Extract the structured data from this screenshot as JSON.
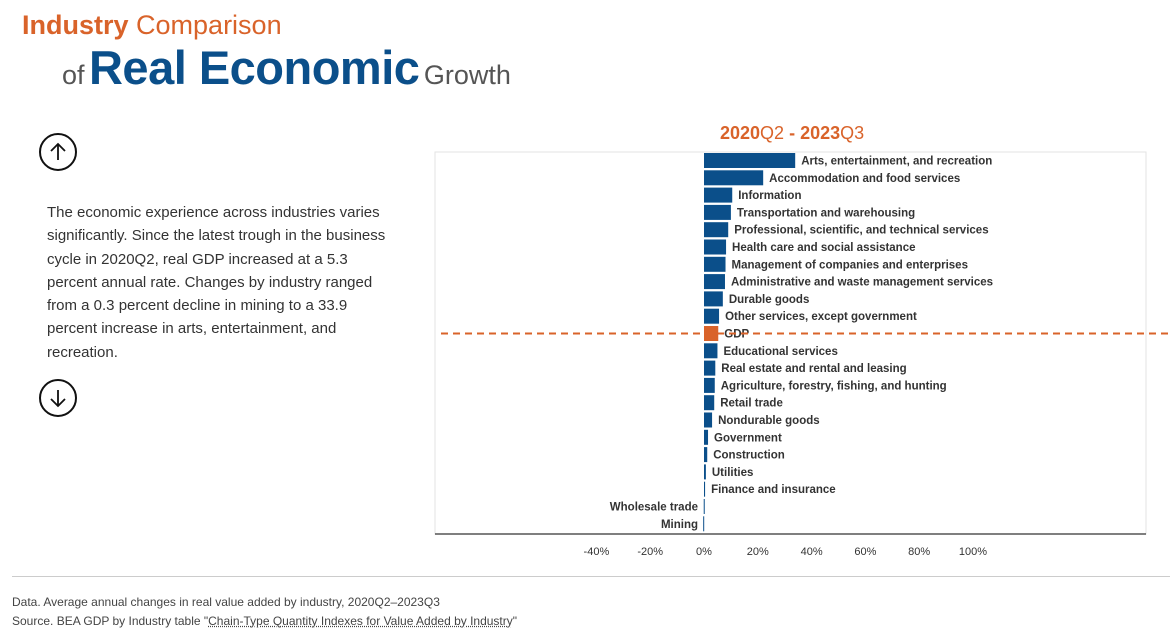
{
  "title": {
    "line1_bold": "Industry",
    "line1_light": "Comparison",
    "line2_of": "of",
    "line2_big": "Real Economic",
    "line2_growth": "Growth"
  },
  "narrative": "The economic experience across industries varies significantly. Since the latest trough in the business cycle in 2020Q2, real GDP increased at a 5.3 percent annual rate. Changes by industry ranged from a 0.3 percent decline in mining to a 33.9 percent increase in arts, entertainment, and recreation.",
  "nav": {
    "up_icon": "arrow-up-icon",
    "down_icon": "arrow-down-icon"
  },
  "period": {
    "start_year": "2020",
    "start_q": "Q2",
    "sep": " - ",
    "end_year": "2023",
    "end_q": "Q3"
  },
  "footnotes": {
    "data": "Data. Average annual changes in real value added by industry, 2020Q2–2023Q3",
    "source_prefix": "Source. BEA GDP by Industry table \"",
    "source_link": "Chain-Type Quantity Indexes for Value Added by Industry",
    "source_suffix": "\""
  },
  "colors": {
    "bar": "#0B4F8A",
    "gdp": "#D9632A",
    "reference_line": "#D9632A"
  },
  "chart_data": {
    "type": "bar",
    "orientation": "horizontal",
    "unit": "percent",
    "xlim": [
      -45,
      105
    ],
    "ticks": [
      -40,
      -20,
      0,
      20,
      40,
      60,
      80,
      100
    ],
    "tick_labels": [
      "-40%",
      "-20%",
      "0%",
      "20%",
      "40%",
      "60%",
      "80%",
      "100%"
    ],
    "reference_line": {
      "category": "GDP",
      "value": 5.3,
      "style": "dashed"
    },
    "categories": [
      "Arts, entertainment, and recreation",
      "Accommodation and food services",
      "Information",
      "Transportation and warehousing",
      "Professional, scientific, and technical services",
      "Health care and social assistance",
      "Management of companies and enterprises",
      "Administrative and waste management services",
      "Durable goods",
      "Other services, except government",
      "GDP",
      "Educational services",
      "Real estate and rental and leasing",
      "Agriculture, forestry, fishing, and hunting",
      "Retail trade",
      "Nondurable goods",
      "Government",
      "Construction",
      "Utilities",
      "Finance and insurance",
      "Wholesale trade",
      "Mining"
    ],
    "values": [
      33.9,
      22.0,
      10.5,
      10.0,
      9.0,
      8.2,
      8.0,
      7.8,
      7.0,
      5.6,
      5.3,
      5.0,
      4.2,
      4.0,
      3.8,
      3.0,
      1.5,
      1.2,
      0.7,
      0.4,
      -0.1,
      -0.3
    ]
  }
}
